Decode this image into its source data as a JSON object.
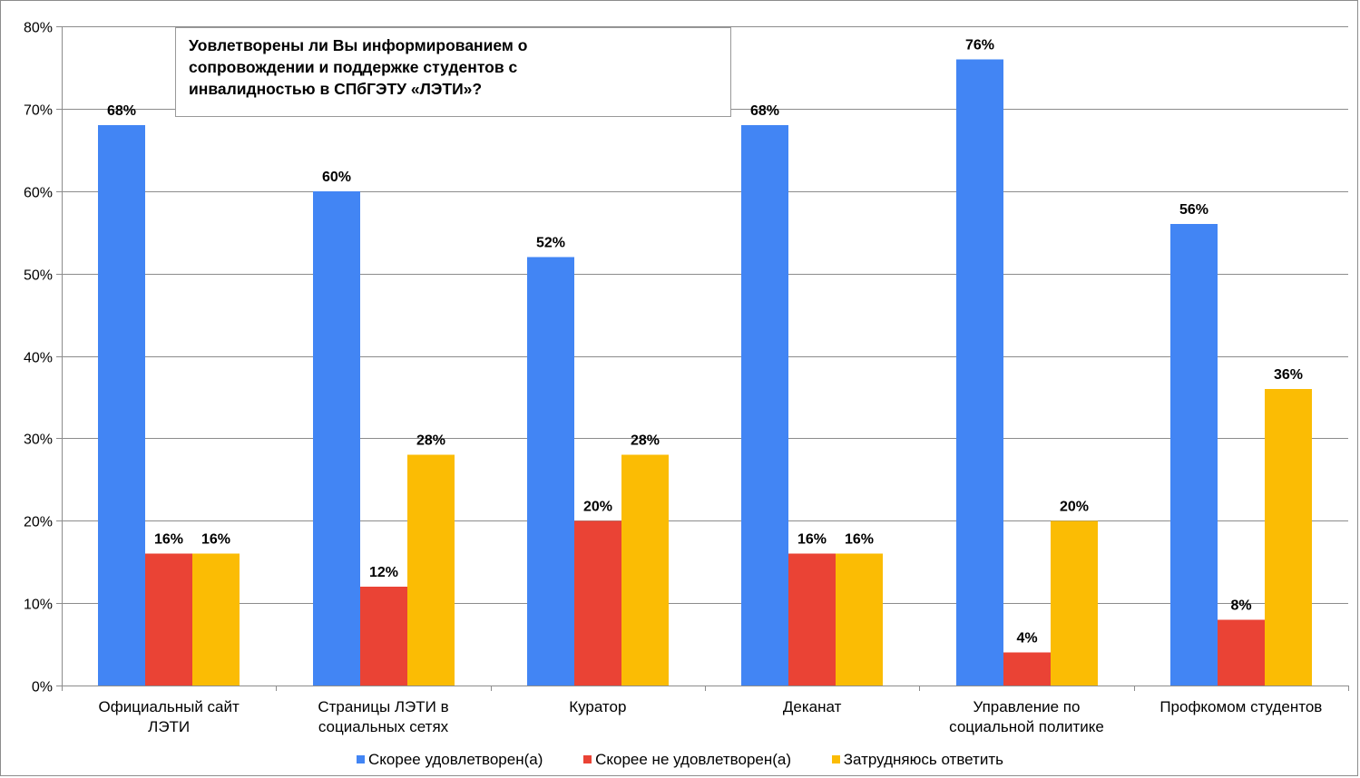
{
  "chart_data": {
    "type": "bar",
    "title_lines": [
      "Уовлетворены ли Вы информированием о",
      "сопровождении  и поддержке студентов  с",
      "инвалидностью  в СПбГЭТУ «ЛЭТИ»?"
    ],
    "categories": [
      [
        "Официальный сайт",
        "ЛЭТИ"
      ],
      [
        "Страницы ЛЭТИ в",
        "социальных сетях"
      ],
      [
        "Куратор"
      ],
      [
        "Деканат"
      ],
      [
        "Управление по",
        "социальной политике"
      ],
      [
        "Профкомом студентов"
      ]
    ],
    "series": [
      {
        "name": "Скорее удовлетворен(а)",
        "color": "#4285f4",
        "values": [
          68,
          60,
          52,
          68,
          76,
          56
        ]
      },
      {
        "name": "Скорее не удовлетворен(а)",
        "color": "#ea4335",
        "values": [
          16,
          12,
          20,
          16,
          4,
          8
        ]
      },
      {
        "name": "Затрудняюсь  ответить",
        "color": "#fbbc04",
        "values": [
          16,
          28,
          28,
          16,
          20,
          36
        ]
      }
    ],
    "value_suffix": "%",
    "ylim": [
      0,
      80
    ],
    "yticks": [
      0,
      10,
      20,
      30,
      40,
      50,
      60,
      70,
      80
    ],
    "ytick_labels": [
      "0%",
      "10%",
      "20%",
      "30%",
      "40%",
      "50%",
      "60%",
      "70%",
      "80%"
    ],
    "grid": true,
    "legend_position": "bottom",
    "xlabel": "",
    "ylabel": ""
  }
}
